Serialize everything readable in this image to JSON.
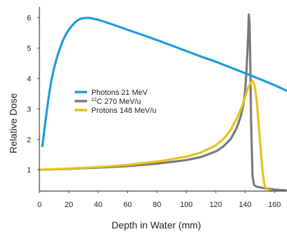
{
  "chart_data": {
    "type": "line",
    "title": "",
    "xlabel": "Depth in Water (mm)",
    "ylabel": "Relative Dose",
    "xlim": [
      0,
      168
    ],
    "ylim": [
      0.3,
      6.35
    ],
    "xticks": [
      0,
      20,
      40,
      60,
      80,
      100,
      120,
      140,
      160
    ],
    "yticks": [
      1,
      2,
      3,
      4,
      5,
      6
    ],
    "grid": false,
    "legend_position": "center-left",
    "series": [
      {
        "name": "Photons 21 MeV",
        "legend_parts": {
          "sup": "",
          "main": "Photons 21 MeV"
        },
        "color": "#1e9be0",
        "x": [
          2,
          4,
          6,
          8,
          10,
          12,
          14,
          16,
          18,
          20,
          22,
          24,
          26,
          28,
          30,
          32,
          34,
          36,
          40,
          45,
          50,
          60,
          70,
          80,
          90,
          100,
          110,
          120,
          130,
          140,
          150,
          160,
          168
        ],
        "y": [
          1.78,
          2.55,
          3.3,
          3.9,
          4.35,
          4.7,
          5.0,
          5.25,
          5.45,
          5.6,
          5.73,
          5.83,
          5.91,
          5.96,
          5.98,
          5.99,
          5.99,
          5.97,
          5.93,
          5.85,
          5.77,
          5.6,
          5.43,
          5.26,
          5.08,
          4.9,
          4.72,
          4.55,
          4.36,
          4.17,
          3.98,
          3.78,
          3.6
        ]
      },
      {
        "name": "12C 270 MeV/u",
        "legend_parts": {
          "sup": "12",
          "main": "C 270 MeV/u"
        },
        "color": "#7a7a7a",
        "x": [
          0,
          20,
          40,
          60,
          80,
          100,
          110,
          120,
          125,
          130,
          134,
          137,
          139,
          140,
          141,
          142,
          142.5,
          143,
          143.5,
          144,
          145,
          146,
          148,
          150,
          155,
          160,
          168
        ],
        "y": [
          1.0,
          1.03,
          1.07,
          1.12,
          1.2,
          1.32,
          1.42,
          1.6,
          1.76,
          2.0,
          2.35,
          2.75,
          3.2,
          3.6,
          4.3,
          5.4,
          6.1,
          5.8,
          4.5,
          2.7,
          0.8,
          0.5,
          0.44,
          0.42,
          0.38,
          0.35,
          0.32
        ]
      },
      {
        "name": "Protons 148 MeV/u",
        "legend_parts": {
          "sup": "",
          "main": "Protons 148 MeV/u"
        },
        "color": "#e8c21a",
        "x": [
          0,
          20,
          40,
          60,
          80,
          100,
          110,
          120,
          125,
          130,
          135,
          138,
          140,
          142,
          144,
          145,
          146,
          147,
          148,
          149,
          150,
          151,
          152,
          153,
          154,
          156,
          158
        ],
        "y": [
          1.0,
          1.04,
          1.09,
          1.16,
          1.27,
          1.43,
          1.57,
          1.8,
          2.0,
          2.3,
          2.75,
          3.1,
          3.4,
          3.7,
          3.88,
          3.92,
          3.85,
          3.6,
          3.2,
          2.6,
          2.0,
          1.4,
          0.9,
          0.55,
          0.4,
          0.33,
          0.3
        ]
      }
    ]
  }
}
